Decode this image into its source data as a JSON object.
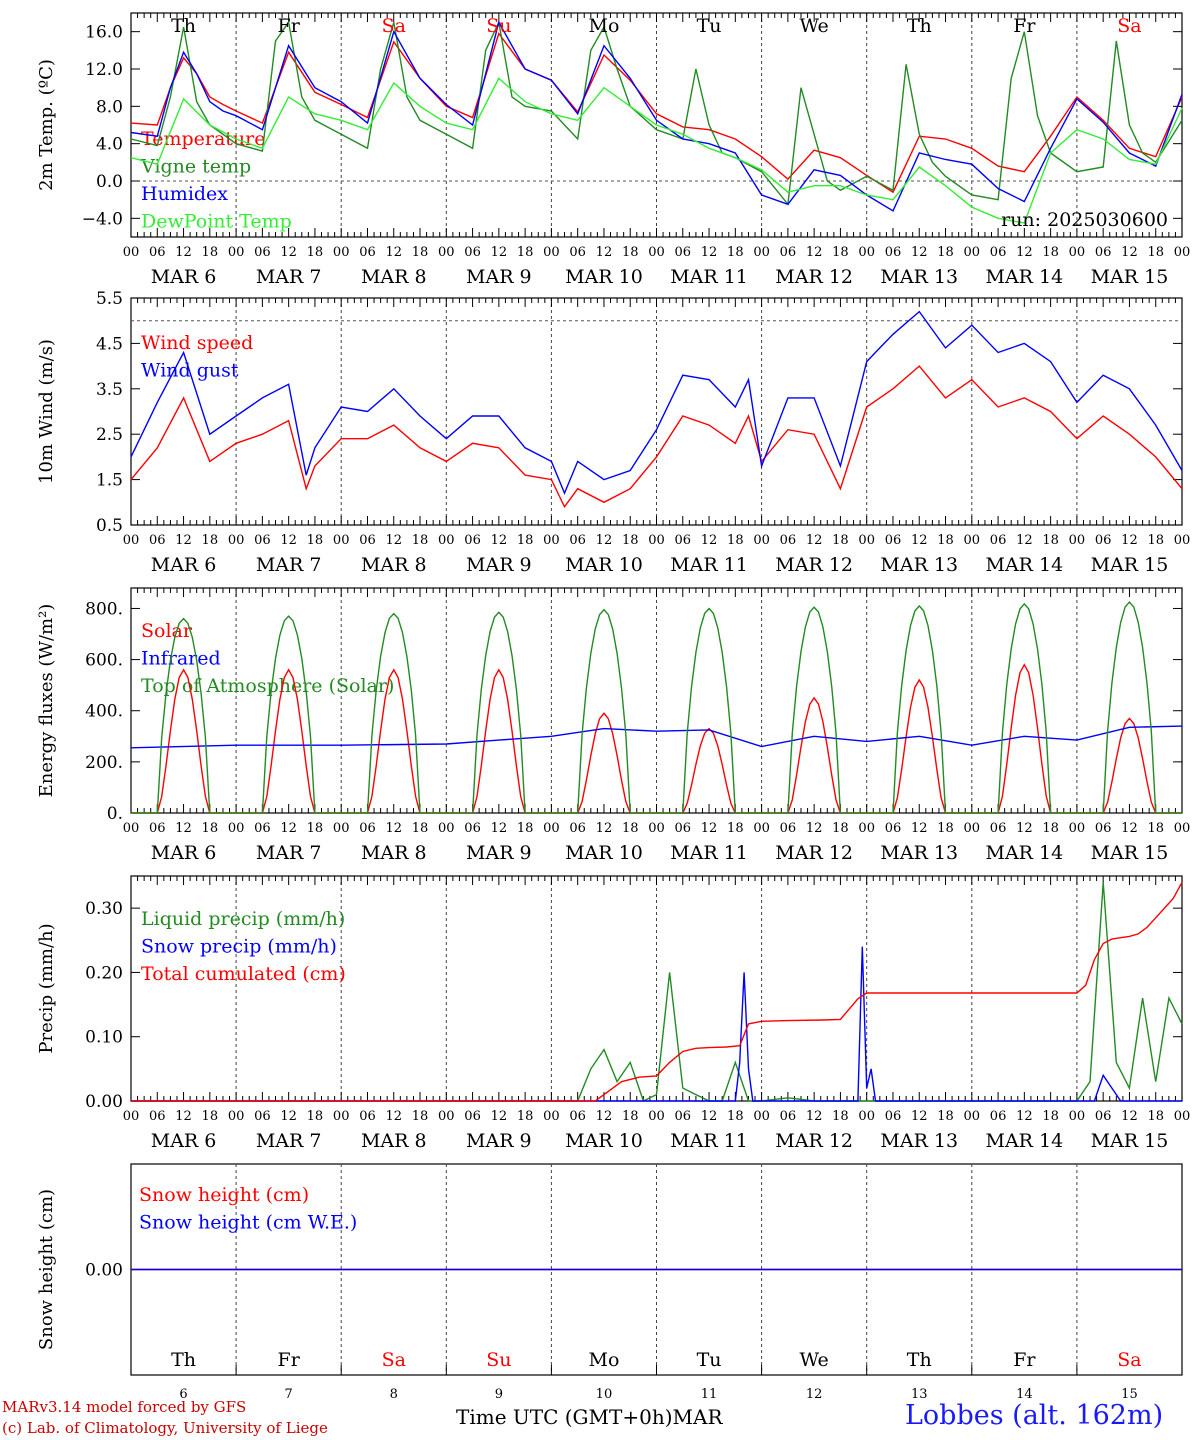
{
  "page": {
    "credit_line1": "MARv3.14 model forced by GFS",
    "credit_line2": "(c) Lab. of Climatology, University of Liege",
    "x_title": "Time UTC (GMT+0h)",
    "x_month": "MAR",
    "station": "Lobbes (alt. 162m)",
    "run_label": "run: 2025030600"
  },
  "days": {
    "weekdays": [
      "Th",
      "Fr",
      "Sa",
      "Su",
      "Mo",
      "Tu",
      "We",
      "Th",
      "Fr",
      "Sa"
    ],
    "weekend_flags": [
      false,
      false,
      true,
      true,
      false,
      false,
      false,
      false,
      false,
      true
    ],
    "date_labels": [
      "MAR  6",
      "MAR  7",
      "MAR  8",
      "MAR  9",
      "MAR 10",
      "MAR 11",
      "MAR 12",
      "MAR 13",
      "MAR 14",
      "MAR 15"
    ],
    "day_numbers": [
      "6",
      "7",
      "8",
      "9",
      "10",
      "11",
      "12",
      "13",
      "14",
      "15"
    ],
    "hour_labels": [
      "00",
      "06",
      "12",
      "18"
    ],
    "last_hour_label": "00"
  },
  "colors": {
    "red": "#ff0000",
    "green": "#228b22",
    "blue": "#0000ff",
    "light_green": "#33ee33",
    "weekend_red": "#ff0000",
    "weekday": "#000000"
  },
  "chart_data": [
    {
      "type": "line",
      "id": "temperature",
      "ylabel": "2m Temp. (ºC)",
      "ylim": [
        -6,
        18
      ],
      "yticks": [
        -4.0,
        0.0,
        4.0,
        8.0,
        12.0,
        16.0
      ],
      "ytick_labels": [
        "−4.0",
        "0.0",
        "4.0",
        "8.0",
        "12.0",
        "16.0"
      ],
      "ref_lines": [
        0
      ],
      "grid": "vertical dashed at 00 UTC",
      "legend": "top-left",
      "x_unit": "hours since MAR 6 00 UTC (inferred)",
      "series": [
        {
          "name": "Temperature",
          "color": "red",
          "x": [
            0,
            6,
            9,
            12,
            15,
            18,
            21,
            24,
            30,
            36,
            42,
            48,
            54,
            60,
            66,
            72,
            78,
            84,
            90,
            96,
            102,
            108,
            114,
            120,
            126,
            132,
            138,
            144,
            150,
            156,
            162,
            168,
            174,
            180,
            186,
            192,
            198,
            204,
            210,
            216,
            222,
            228,
            234,
            240
          ],
          "y": [
            6.2,
            6.0,
            10,
            13.2,
            11.5,
            9,
            8.2,
            7.5,
            6.2,
            13.8,
            9.5,
            8.2,
            6.8,
            14.9,
            11,
            8,
            6.8,
            15.8,
            12,
            10.8,
            7.4,
            13.5,
            10.8,
            7.2,
            5.8,
            5.5,
            4.5,
            2.6,
            0.2,
            3.3,
            2.5,
            0.6,
            -1.2,
            4.8,
            4.5,
            3.5,
            1.6,
            1.0,
            4.8,
            9.0,
            6.5,
            3.5,
            2.6,
            9.0
          ]
        },
        {
          "name": "Vigne temp",
          "color": "green",
          "x": [
            0,
            6,
            9,
            12,
            15,
            18,
            21,
            24,
            30,
            33,
            36,
            39,
            42,
            48,
            54,
            57,
            60,
            63,
            66,
            72,
            78,
            81,
            84,
            87,
            90,
            96,
            102,
            105,
            108,
            111,
            114,
            120,
            126,
            129,
            132,
            135,
            138,
            144,
            150,
            153,
            156,
            159,
            162,
            168,
            174,
            177,
            180,
            183,
            186,
            192,
            198,
            201,
            204,
            207,
            210,
            216,
            222,
            225,
            228,
            231,
            234,
            240
          ],
          "y": [
            4.5,
            3.8,
            9,
            16.5,
            8.5,
            6,
            5,
            4,
            3.2,
            15,
            17,
            9,
            6.5,
            5,
            3.5,
            12,
            17,
            9,
            6.5,
            5,
            3.5,
            14,
            17,
            9,
            8,
            7.5,
            4.5,
            14,
            16.5,
            12,
            8,
            5.5,
            4.5,
            12,
            6,
            3,
            2.5,
            1,
            -2.5,
            10,
            5,
            0,
            -1,
            0.5,
            -1,
            12.5,
            5,
            2,
            0.5,
            -1.5,
            -2,
            11,
            16,
            7,
            3,
            1,
            1.5,
            15,
            6,
            3,
            2,
            6.5
          ]
        },
        {
          "name": "Humidex",
          "color": "blue",
          "x": [
            0,
            6,
            9,
            12,
            15,
            18,
            21,
            24,
            30,
            36,
            42,
            48,
            54,
            60,
            66,
            72,
            78,
            84,
            90,
            96,
            102,
            108,
            114,
            120,
            126,
            132,
            138,
            144,
            150,
            156,
            162,
            168,
            174,
            180,
            186,
            192,
            198,
            204,
            210,
            216,
            222,
            228,
            234,
            240
          ],
          "y": [
            5.2,
            4.8,
            10,
            13.8,
            11.5,
            8.5,
            7.5,
            7,
            5.5,
            14.5,
            10,
            8.5,
            6.2,
            16,
            11,
            8.2,
            6,
            17,
            12,
            10.8,
            7.2,
            14.5,
            11,
            6.5,
            4.5,
            4,
            3,
            -1.5,
            -2.5,
            1.2,
            0.6,
            -1.5,
            -3.2,
            3,
            2.3,
            1.8,
            -0.8,
            -2.2,
            3.5,
            8.8,
            6.3,
            3,
            1.6,
            9.3
          ]
        },
        {
          "name": "DewPoint Temp",
          "color": "light_green",
          "x": [
            0,
            6,
            12,
            18,
            24,
            30,
            36,
            42,
            48,
            54,
            60,
            66,
            72,
            78,
            84,
            90,
            96,
            102,
            108,
            114,
            120,
            126,
            132,
            138,
            144,
            150,
            156,
            162,
            168,
            174,
            180,
            186,
            192,
            198,
            204,
            210,
            216,
            222,
            228,
            234,
            240
          ],
          "y": [
            2.5,
            1.8,
            8.8,
            6,
            4.5,
            3.5,
            9,
            7.2,
            6.5,
            5.5,
            10.5,
            8,
            6.2,
            5.5,
            11,
            8.5,
            7.2,
            6.5,
            10,
            8,
            6,
            5,
            3.5,
            2.5,
            1.2,
            -1.2,
            -0.5,
            -0.5,
            -1.5,
            -2,
            1.5,
            -0.5,
            -2.8,
            -4,
            -4.5,
            3,
            5.5,
            4.5,
            2.3,
            1.8,
            7.8
          ]
        }
      ]
    },
    {
      "type": "line",
      "id": "wind",
      "ylabel": "10m Wind (m/s)",
      "ylim": [
        0.5,
        5.5
      ],
      "yticks": [
        0.5,
        1.5,
        2.5,
        3.5,
        4.5,
        5.5
      ],
      "ytick_labels": [
        "0.5",
        "1.5",
        "2.5",
        "3.5",
        "4.5",
        "5.5"
      ],
      "ref_lines": [
        5.0
      ],
      "legend": "top-left",
      "series": [
        {
          "name": "Wind speed",
          "color": "red",
          "x": [
            0,
            6,
            12,
            18,
            24,
            30,
            36,
            40,
            42,
            48,
            54,
            60,
            66,
            72,
            78,
            84,
            90,
            96,
            99,
            102,
            108,
            114,
            120,
            126,
            132,
            138,
            141,
            144,
            150,
            156,
            162,
            168,
            171,
            174,
            180,
            186,
            192,
            198,
            204,
            210,
            216,
            222,
            228,
            234,
            240
          ],
          "y": [
            1.5,
            2.2,
            3.3,
            1.9,
            2.3,
            2.5,
            2.8,
            1.3,
            1.8,
            2.4,
            2.4,
            2.7,
            2.2,
            1.9,
            2.3,
            2.2,
            1.6,
            1.5,
            0.9,
            1.3,
            1.0,
            1.3,
            2.0,
            2.9,
            2.7,
            2.3,
            2.9,
            1.9,
            2.6,
            2.5,
            1.3,
            3.1,
            3.3,
            3.5,
            4.0,
            3.3,
            3.7,
            3.1,
            3.3,
            3.0,
            2.4,
            2.9,
            2.5,
            2.0,
            1.3
          ]
        },
        {
          "name": "Wind gust",
          "color": "blue",
          "x": [
            0,
            6,
            12,
            18,
            24,
            30,
            36,
            40,
            42,
            48,
            54,
            60,
            66,
            72,
            78,
            84,
            90,
            96,
            99,
            102,
            108,
            114,
            120,
            126,
            132,
            138,
            141,
            144,
            150,
            156,
            162,
            168,
            171,
            174,
            180,
            186,
            192,
            198,
            204,
            210,
            216,
            222,
            228,
            234,
            240
          ],
          "y": [
            2.0,
            3.2,
            4.3,
            2.5,
            2.9,
            3.3,
            3.6,
            1.6,
            2.2,
            3.1,
            3.0,
            3.5,
            2.9,
            2.4,
            2.9,
            2.9,
            2.2,
            1.9,
            1.2,
            1.9,
            1.5,
            1.7,
            2.6,
            3.8,
            3.7,
            3.1,
            3.7,
            1.8,
            3.3,
            3.3,
            1.8,
            4.1,
            4.4,
            4.7,
            5.2,
            4.4,
            4.9,
            4.3,
            4.5,
            4.1,
            3.2,
            3.8,
            3.5,
            2.7,
            1.7
          ]
        }
      ]
    },
    {
      "type": "line",
      "id": "energy",
      "ylabel": "Energy fluxes (W/m²)",
      "ylim": [
        0,
        880
      ],
      "yticks": [
        0,
        200,
        400,
        600,
        800
      ],
      "ytick_labels": [
        "0.",
        "200.",
        "400.",
        "600.",
        "800."
      ],
      "legend": "top-left",
      "series": [
        {
          "name": "Solar",
          "color": "red",
          "peaks": [
            560,
            560,
            560,
            560,
            390,
            330,
            450,
            520,
            580,
            370
          ]
        },
        {
          "name": "Infrared",
          "color": "blue",
          "x": [
            0,
            24,
            48,
            72,
            84,
            96,
            108,
            120,
            132,
            144,
            156,
            168,
            180,
            192,
            204,
            216,
            228,
            240
          ],
          "y": [
            255,
            265,
            265,
            270,
            285,
            300,
            330,
            320,
            325,
            260,
            300,
            280,
            300,
            265,
            300,
            285,
            335,
            340
          ]
        },
        {
          "name": "Top of Atmosphere (Solar)",
          "color": "green",
          "peaks": [
            760,
            770,
            780,
            785,
            795,
            800,
            805,
            810,
            818,
            825
          ]
        }
      ]
    },
    {
      "type": "line",
      "id": "precip",
      "ylabel": "Precip (mm/h)",
      "ylim": [
        0,
        0.35
      ],
      "yticks": [
        0.0,
        0.1,
        0.2,
        0.3
      ],
      "ytick_labels": [
        "0.00",
        "0.10",
        "0.20",
        "0.30"
      ],
      "legend": "top-left",
      "series": [
        {
          "name": "Liquid precip (mm/h)",
          "color": "green",
          "x": [
            0,
            102,
            105,
            108,
            111,
            114,
            117,
            120,
            123,
            126,
            129,
            132,
            135,
            138,
            141,
            144,
            150,
            156,
            162,
            168,
            216,
            219,
            222,
            225,
            228,
            231,
            234,
            237,
            240
          ],
          "y": [
            0,
            0,
            0.05,
            0.08,
            0.03,
            0.06,
            0,
            0.01,
            0.2,
            0.02,
            0.01,
            0,
            0,
            0.06,
            0,
            0,
            0.005,
            0,
            0,
            0,
            0,
            0.03,
            0.34,
            0.06,
            0.02,
            0.16,
            0.03,
            0.16,
            0.12
          ]
        },
        {
          "name": "Snow precip (mm/h)",
          "color": "blue",
          "x": [
            0,
            138,
            139,
            140,
            141,
            142,
            166,
            167,
            168,
            169,
            170,
            220,
            222,
            224,
            226,
            228,
            240
          ],
          "y": [
            0,
            0,
            0.06,
            0.2,
            0.05,
            0,
            0,
            0.24,
            0.02,
            0.05,
            0,
            0,
            0.04,
            0.02,
            0,
            0,
            0
          ]
        },
        {
          "name": "Total cumulated (cm)",
          "color": "red",
          "x": [
            0,
            106,
            109,
            112,
            116,
            120,
            123,
            126,
            129,
            132,
            136,
            139,
            141,
            144,
            150,
            158,
            162,
            166,
            168,
            216,
            218,
            220,
            222,
            224,
            226,
            228,
            230,
            232,
            234,
            236,
            238,
            240
          ],
          "y": [
            0,
            0,
            0.015,
            0.03,
            0.037,
            0.039,
            0.06,
            0.077,
            0.082,
            0.083,
            0.084,
            0.086,
            0.12,
            0.124,
            0.125,
            0.126,
            0.127,
            0.159,
            0.168,
            0.168,
            0.18,
            0.22,
            0.245,
            0.252,
            0.254,
            0.256,
            0.26,
            0.27,
            0.285,
            0.3,
            0.315,
            0.34
          ]
        }
      ]
    },
    {
      "type": "line",
      "id": "snow",
      "ylabel": "Snow height (cm)",
      "ylim": [
        -1,
        1
      ],
      "yticks": [
        0
      ],
      "ytick_labels": [
        "0.00"
      ],
      "legend": "top-left",
      "series": [
        {
          "name": "Snow height (cm)",
          "color": "red",
          "x": [
            0,
            240
          ],
          "y": [
            0,
            0
          ]
        },
        {
          "name": "Snow height (cm W.E.)",
          "color": "blue",
          "x": [
            0,
            240
          ],
          "y": [
            0,
            0
          ]
        }
      ]
    }
  ]
}
